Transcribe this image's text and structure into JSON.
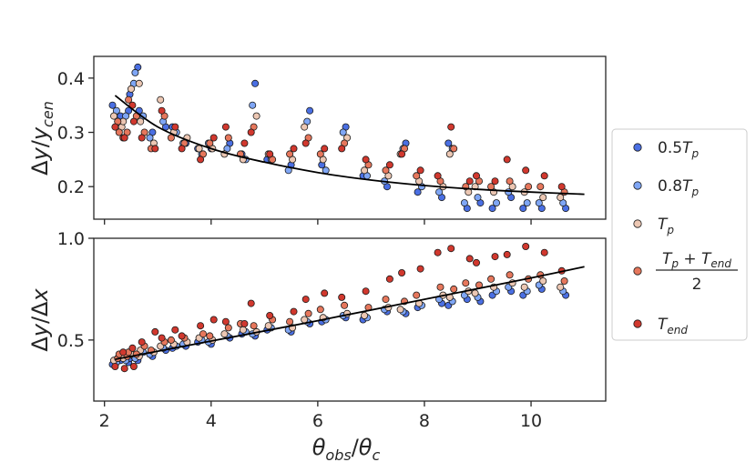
{
  "colors": {
    "c05Tp": "#4a6fe3",
    "c08Tp": "#7fa6f5",
    "cTp": "#ecc7b3",
    "cMid": "#e6775c",
    "cEnd": "#d1382e",
    "fit": "#000000",
    "frame": "#262626"
  },
  "chart_data": [
    {
      "type": "scatter",
      "ylabel": "Δy/y_cen",
      "xlabel": "",
      "xlim": [
        1.8,
        11.4
      ],
      "ylim": [
        0.14,
        0.44
      ],
      "xticks": [
        2,
        4,
        6,
        8,
        10
      ],
      "yticks": [
        0.2,
        0.3,
        0.4
      ],
      "ytick_labels": [
        "0.2",
        "0.3",
        "0.4"
      ],
      "x": [
        2.2,
        2.3,
        2.4,
        2.5,
        2.6,
        2.7,
        2.9,
        3.1,
        3.3,
        3.5,
        3.8,
        4.0,
        4.3,
        4.6,
        4.8,
        5.1,
        5.5,
        5.8,
        6.1,
        6.5,
        6.9,
        7.3,
        7.6,
        7.9,
        8.3,
        8.5,
        8.8,
        9.0,
        9.3,
        9.6,
        9.9,
        10.2,
        10.6
      ],
      "fit": {
        "x": [
          2.2,
          3.0,
          4.0,
          5.0,
          6.0,
          7.0,
          8.0,
          9.0,
          10.0,
          11.0
        ],
        "y": [
          0.368,
          0.31,
          0.27,
          0.245,
          0.226,
          0.212,
          0.202,
          0.195,
          0.19,
          0.186
        ]
      },
      "series": [
        {
          "values": [
            0.35,
            0.33,
            0.34,
            0.37,
            0.42,
            0.34,
            0.3,
            0.31,
            0.31,
            0.28,
            0.27,
            0.27,
            0.28,
            0.26,
            0.39,
            0.25,
            0.24,
            0.34,
            0.24,
            0.31,
            0.22,
            0.2,
            0.28,
            0.19,
            0.18,
            0.28,
            0.16,
            0.17,
            0.16,
            0.18,
            0.16,
            0.16,
            0.16
          ]
        },
        {
          "values": [
            0.34,
            0.32,
            0.33,
            0.39,
            0.41,
            0.33,
            0.29,
            0.32,
            0.3,
            0.28,
            0.26,
            0.28,
            0.27,
            0.25,
            0.35,
            0.25,
            0.23,
            0.32,
            0.23,
            0.3,
            0.22,
            0.21,
            0.27,
            0.2,
            0.19,
            0.27,
            0.17,
            0.18,
            0.17,
            0.19,
            0.17,
            0.17,
            0.17
          ]
        },
        {
          "values": [
            0.33,
            0.31,
            0.32,
            0.38,
            0.39,
            0.32,
            0.28,
            0.36,
            0.3,
            0.29,
            0.27,
            0.27,
            0.26,
            0.25,
            0.33,
            0.26,
            0.25,
            0.31,
            0.25,
            0.29,
            0.23,
            0.22,
            0.26,
            0.21,
            0.2,
            0.26,
            0.19,
            0.2,
            0.19,
            0.2,
            0.19,
            0.18,
            0.18
          ]
        },
        {
          "values": [
            0.32,
            0.3,
            0.3,
            0.36,
            0.33,
            0.3,
            0.27,
            0.33,
            0.29,
            0.28,
            0.26,
            0.28,
            0.29,
            0.26,
            0.31,
            0.25,
            0.26,
            0.29,
            0.26,
            0.28,
            0.24,
            0.23,
            0.27,
            0.22,
            0.21,
            0.27,
            0.2,
            0.21,
            0.2,
            0.21,
            0.2,
            0.2,
            0.19
          ]
        },
        {
          "values": [
            0.31,
            0.29,
            0.29,
            0.35,
            0.32,
            0.29,
            0.27,
            0.34,
            0.31,
            0.27,
            0.25,
            0.29,
            0.31,
            0.28,
            0.3,
            0.26,
            0.27,
            0.28,
            0.27,
            0.27,
            0.25,
            0.24,
            0.26,
            0.23,
            0.22,
            0.31,
            0.21,
            0.22,
            0.21,
            0.25,
            0.23,
            0.22,
            0.2
          ]
        }
      ]
    },
    {
      "type": "scatter",
      "ylabel": "Δy/Δx",
      "xlabel": "θ_obs/θ_c",
      "xlim": [
        1.8,
        11.4
      ],
      "ylim": [
        0.2,
        1.0
      ],
      "xticks": [
        2,
        4,
        6,
        8,
        10
      ],
      "xtick_labels": [
        "2",
        "4",
        "6",
        "8",
        "10"
      ],
      "yticks": [
        0.5,
        1.0
      ],
      "ytick_labels": [
        "0.5",
        "1.0"
      ],
      "x": [
        2.2,
        2.3,
        2.4,
        2.5,
        2.6,
        2.7,
        2.9,
        3.1,
        3.3,
        3.5,
        3.8,
        4.0,
        4.3,
        4.6,
        4.8,
        5.1,
        5.5,
        5.8,
        6.1,
        6.5,
        6.9,
        7.3,
        7.6,
        7.9,
        8.3,
        8.5,
        8.8,
        9.0,
        9.3,
        9.6,
        9.9,
        10.2,
        10.6
      ],
      "fit": {
        "x": [
          2.2,
          4.0,
          6.0,
          8.0,
          10.0,
          11.0
        ],
        "y": [
          0.405,
          0.495,
          0.595,
          0.7,
          0.805,
          0.86
        ]
      },
      "series": [
        {
          "values": [
            0.38,
            0.4,
            0.39,
            0.41,
            0.4,
            0.43,
            0.42,
            0.45,
            0.46,
            0.47,
            0.49,
            0.48,
            0.51,
            0.53,
            0.52,
            0.55,
            0.54,
            0.58,
            0.59,
            0.61,
            0.6,
            0.64,
            0.63,
            0.66,
            0.68,
            0.67,
            0.7,
            0.69,
            0.72,
            0.74,
            0.72,
            0.75,
            0.72
          ]
        },
        {
          "values": [
            0.39,
            0.41,
            0.4,
            0.42,
            0.41,
            0.44,
            0.43,
            0.46,
            0.47,
            0.48,
            0.5,
            0.49,
            0.52,
            0.54,
            0.53,
            0.56,
            0.55,
            0.59,
            0.6,
            0.62,
            0.61,
            0.65,
            0.64,
            0.67,
            0.7,
            0.69,
            0.72,
            0.71,
            0.74,
            0.76,
            0.74,
            0.77,
            0.74
          ]
        },
        {
          "values": [
            0.4,
            0.42,
            0.41,
            0.43,
            0.42,
            0.45,
            0.44,
            0.47,
            0.48,
            0.49,
            0.51,
            0.5,
            0.53,
            0.55,
            0.54,
            0.57,
            0.56,
            0.6,
            0.61,
            0.63,
            0.62,
            0.66,
            0.65,
            0.68,
            0.72,
            0.71,
            0.74,
            0.73,
            0.76,
            0.78,
            0.76,
            0.79,
            0.76
          ]
        },
        {
          "values": [
            0.41,
            0.43,
            0.42,
            0.44,
            0.43,
            0.47,
            0.45,
            0.49,
            0.5,
            0.51,
            0.53,
            0.52,
            0.56,
            0.58,
            0.57,
            0.6,
            0.59,
            0.63,
            0.65,
            0.67,
            0.66,
            0.7,
            0.69,
            0.72,
            0.76,
            0.75,
            0.78,
            0.77,
            0.8,
            0.82,
            0.8,
            0.82,
            0.79
          ]
        },
        {
          "values": [
            0.37,
            0.44,
            0.36,
            0.46,
            0.37,
            0.49,
            0.54,
            0.51,
            0.55,
            0.52,
            0.57,
            0.6,
            0.59,
            0.58,
            0.68,
            0.62,
            0.64,
            0.7,
            0.73,
            0.71,
            0.74,
            0.8,
            0.83,
            0.85,
            0.93,
            0.95,
            0.9,
            0.88,
            0.91,
            0.92,
            0.96,
            0.93,
            0.84
          ]
        }
      ]
    }
  ],
  "legend": {
    "position": "right",
    "entries": [
      {
        "main": "0.5T",
        "sub": "p"
      },
      {
        "main": "0.8T",
        "sub": "p"
      },
      {
        "main": "T",
        "sub": "p"
      },
      {
        "numerator": "T_p + T_end",
        "denominator": "2"
      },
      {
        "main": "T",
        "sub": "end"
      }
    ]
  }
}
